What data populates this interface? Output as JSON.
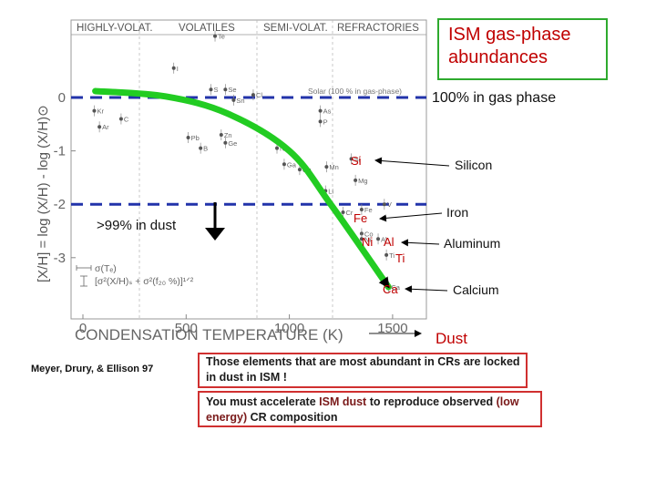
{
  "chart_data": {
    "type": "scatter",
    "title": "",
    "xlabel": "CONDENSATION TEMPERATURE (K)",
    "ylabel": "[X/H] = log (X/H) - log (X/H)⊙",
    "xlim": [
      0,
      1700
    ],
    "ylim": [
      -3.9,
      1.45
    ],
    "x_ticks": [
      "0",
      "500",
      "1000",
      "1500"
    ],
    "y_ticks": [
      "0",
      "-1",
      "-2",
      "-3"
    ],
    "top_labels": [
      "HIGHLY-VOLAT.",
      "VOLATILES",
      "SEMI-VOLAT.",
      "REFRACTORIES"
    ],
    "solar_label": "Solar (100 % in gas-phase)",
    "error_legend": [
      "σ(Tₑ)",
      "[σ²(X/H)ₛ + σ²(f₂₀ %)]¹ᐟ²"
    ],
    "points": [
      {
        "label": "Te",
        "x": 640,
        "y": 1.15
      },
      {
        "label": "I",
        "x": 440,
        "y": 0.55
      },
      {
        "label": "S",
        "x": 620,
        "y": 0.15
      },
      {
        "label": "Se",
        "x": 690,
        "y": 0.15
      },
      {
        "label": "Cl",
        "x": 825,
        "y": 0.05
      },
      {
        "label": "Sn",
        "x": 730,
        "y": -0.05
      },
      {
        "label": "Kr",
        "x": 55,
        "y": -0.25
      },
      {
        "label": "C",
        "x": 185,
        "y": -0.4
      },
      {
        "label": "Ar",
        "x": 80,
        "y": -0.55
      },
      {
        "label": "As",
        "x": 1150,
        "y": -0.25
      },
      {
        "label": "P",
        "x": 1150,
        "y": -0.45
      },
      {
        "label": "Pb",
        "x": 510,
        "y": -0.75
      },
      {
        "label": "Zn",
        "x": 670,
        "y": -0.7
      },
      {
        "label": "Ge",
        "x": 690,
        "y": -0.85
      },
      {
        "label": "B",
        "x": 570,
        "y": -0.95
      },
      {
        "label": "Na",
        "x": 940,
        "y": -0.95
      },
      {
        "label": "Ga",
        "x": 975,
        "y": -1.25
      },
      {
        "label": "Cu",
        "x": 1050,
        "y": -1.35
      },
      {
        "label": "Mn",
        "x": 1180,
        "y": -1.3
      },
      {
        "label": "Si",
        "x": 1300,
        "y": -1.15
      },
      {
        "label": "Mg",
        "x": 1320,
        "y": -1.55
      },
      {
        "label": "Li",
        "x": 1175,
        "y": -1.75
      },
      {
        "label": "V",
        "x": 1460,
        "y": -2.0
      },
      {
        "label": "Cr",
        "x": 1260,
        "y": -2.15
      },
      {
        "label": "Fe",
        "x": 1350,
        "y": -2.1
      },
      {
        "label": "Co",
        "x": 1350,
        "y": -2.55
      },
      {
        "label": "Ni",
        "x": 1350,
        "y": -2.65
      },
      {
        "label": "Al",
        "x": 1430,
        "y": -2.65
      },
      {
        "label": "Ti",
        "x": 1470,
        "y": -2.95
      },
      {
        "label": "Ca",
        "x": 1480,
        "y": -3.55
      }
    ],
    "trend_line": {
      "x": [
        60,
        400,
        700,
        1000,
        1200,
        1480
      ],
      "y": [
        0.12,
        0.02,
        -0.3,
        -1.0,
        -2.0,
        -3.55
      ]
    },
    "reference_lines": [
      {
        "y": 0,
        "label": "100% in gas phase"
      },
      {
        "y": -2,
        "label": ""
      }
    ]
  },
  "annotations": {
    "title": "ISM gas-phase abundances",
    "dust_left": ">99% in dust",
    "dust_right": "Dust",
    "element_labels": [
      {
        "text": "Si",
        "name": "Silicon"
      },
      {
        "text": "Fe",
        "name": "Iron"
      },
      {
        "text": "Al",
        "name": "Aluminum"
      },
      {
        "text": "Ca",
        "name": "Calcium"
      }
    ],
    "ni_label": "Ni",
    "ti_label": "Ti"
  },
  "citation": "Meyer, Drury, & Ellison 97",
  "note_1": "Those elements that are most abundant in CRs are locked in dust in ISM !",
  "note_2": {
    "part1": "You must accelerate ",
    "highlight1": "ISM dust",
    "part2": " to reproduce observed ",
    "highlight2": "(low energy)",
    "part3": " CR composition"
  },
  "colors": {
    "trend": "#22cc22",
    "reference": "#2233aa",
    "red_text": "#c00000",
    "green_border": "#2eaa2e",
    "red_border": "#d03030"
  }
}
